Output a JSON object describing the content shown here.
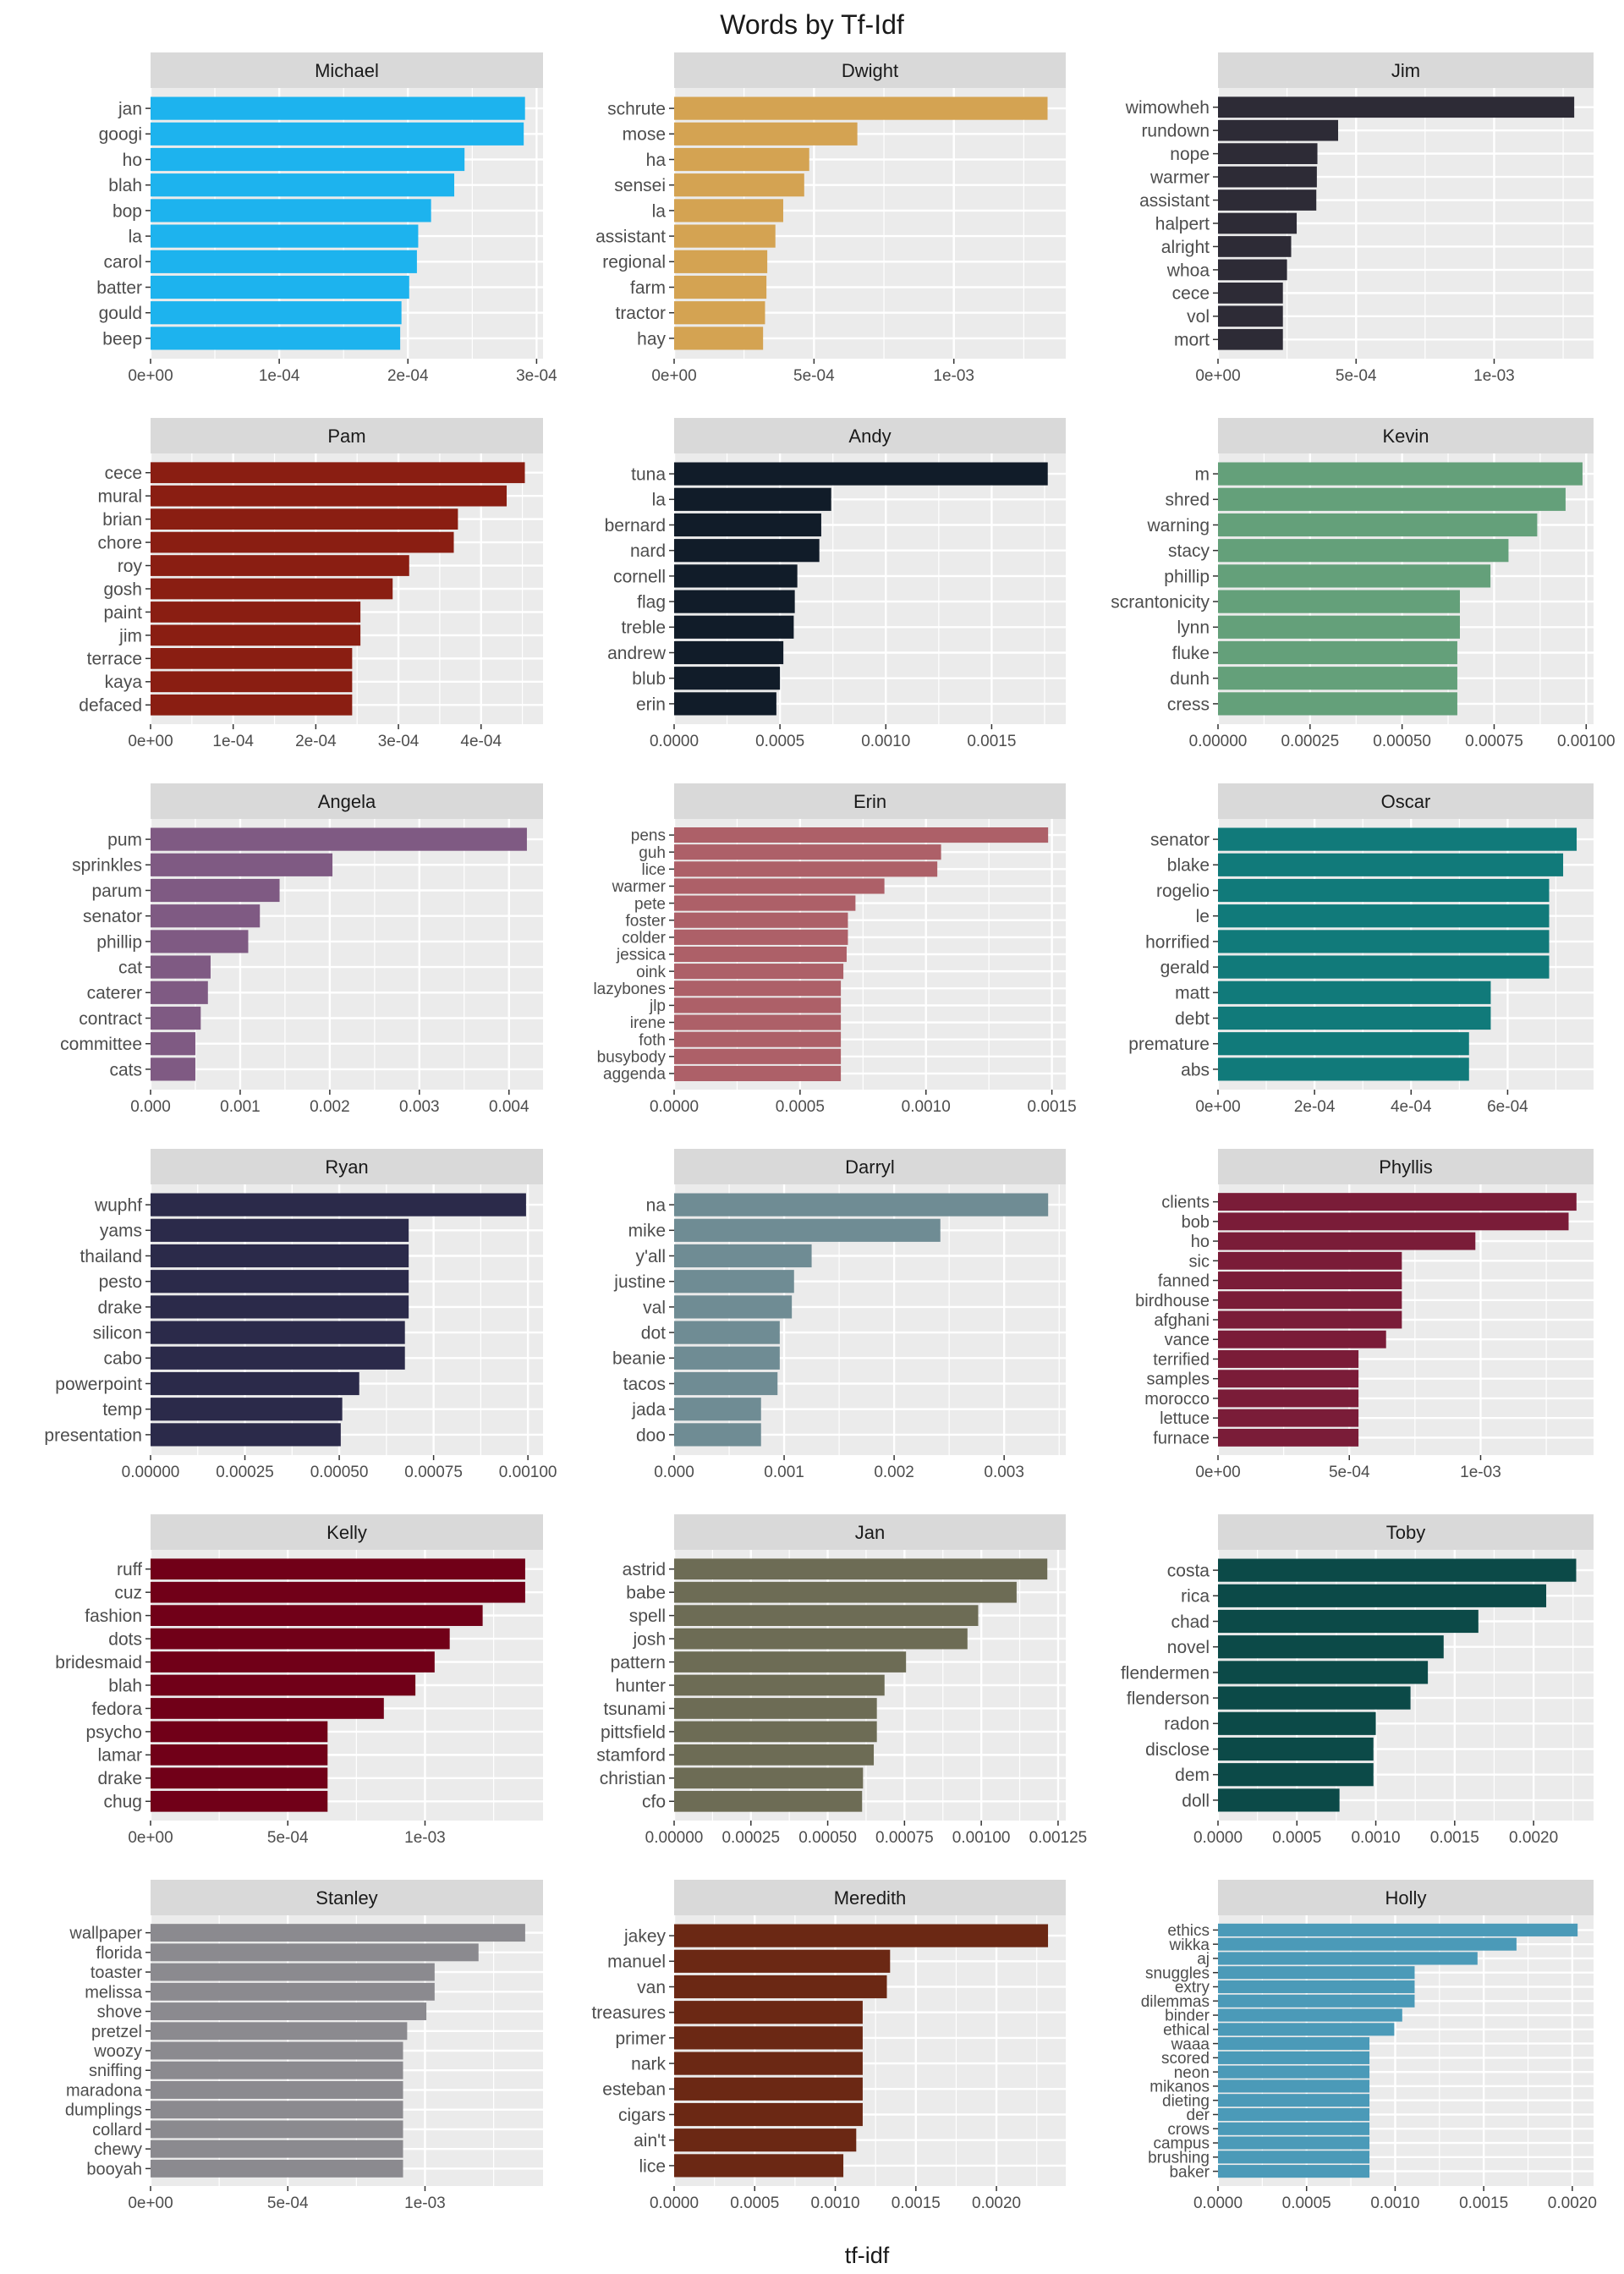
{
  "chart_data": {
    "type": "bar",
    "orientation": "horizontal",
    "title": "Words by Tf-Idf",
    "xlabel": "tf-idf",
    "ylabel": "",
    "grid": true,
    "facets": [
      {
        "name": "Michael",
        "color": "#1db3ee",
        "xlim": [
          0,
          0.000305
        ],
        "ticks": [
          {
            "v": 0,
            "l": "0e+00"
          },
          {
            "v": 0.0001,
            "l": "1e-04"
          },
          {
            "v": 0.0002,
            "l": "2e-04"
          },
          {
            "v": 0.0003,
            "l": "3e-04"
          }
        ],
        "categories": [
          "jan",
          "googi",
          "ho",
          "blah",
          "bop",
          "la",
          "carol",
          "batter",
          "gould",
          "beep"
        ],
        "values": [
          0.000291,
          0.00029,
          0.000244,
          0.000236,
          0.000218,
          0.000208,
          0.000207,
          0.000201,
          0.000195,
          0.000194
        ]
      },
      {
        "name": "Dwight",
        "color": "#d4a352",
        "xlim": [
          0,
          0.0014
        ],
        "ticks": [
          {
            "v": 0,
            "l": "0e+00"
          },
          {
            "v": 0.0005,
            "l": "5e-04"
          },
          {
            "v": 0.001,
            "l": "1e-03"
          }
        ],
        "categories": [
          "schrute",
          "mose",
          "ha",
          "sensei",
          "la",
          "assistant",
          "regional",
          "farm",
          "tractor",
          "hay"
        ],
        "values": [
          0.001335,
          0.000655,
          0.000483,
          0.000465,
          0.00039,
          0.000362,
          0.000333,
          0.00033,
          0.000325,
          0.000318
        ]
      },
      {
        "name": "Jim",
        "color": "#2d2b36",
        "xlim": [
          0,
          0.00136
        ],
        "ticks": [
          {
            "v": 0,
            "l": "0e+00"
          },
          {
            "v": 0.0005,
            "l": "5e-04"
          },
          {
            "v": 0.001,
            "l": "1e-03"
          }
        ],
        "categories": [
          "wimowheh",
          "rundown",
          "nope",
          "warmer",
          "assistant",
          "halpert",
          "alright",
          "whoa",
          "cece",
          "vol",
          "mort"
        ],
        "values": [
          0.00129,
          0.000435,
          0.00036,
          0.000358,
          0.000356,
          0.000285,
          0.000265,
          0.00025,
          0.000235,
          0.000235,
          0.000235
        ]
      },
      {
        "name": "Pam",
        "color": "#8a1e12",
        "xlim": [
          0,
          0.000475
        ],
        "ticks": [
          {
            "v": 0,
            "l": "0e+00"
          },
          {
            "v": 0.0001,
            "l": "1e-04"
          },
          {
            "v": 0.0002,
            "l": "2e-04"
          },
          {
            "v": 0.0003,
            "l": "3e-04"
          },
          {
            "v": 0.0004,
            "l": "4e-04"
          }
        ],
        "categories": [
          "cece",
          "mural",
          "brian",
          "chore",
          "roy",
          "gosh",
          "paint",
          "jim",
          "terrace",
          "kaya",
          "defaced"
        ],
        "values": [
          0.000453,
          0.000431,
          0.000372,
          0.000367,
          0.000313,
          0.000293,
          0.000254,
          0.000254,
          0.000244,
          0.000244,
          0.000244
        ]
      },
      {
        "name": "Andy",
        "color": "#111c29",
        "xlim": [
          0,
          0.00185
        ],
        "ticks": [
          {
            "v": 0,
            "l": "0.0000"
          },
          {
            "v": 0.0005,
            "l": "0.0005"
          },
          {
            "v": 0.001,
            "l": "0.0010"
          },
          {
            "v": 0.0015,
            "l": "0.0015"
          }
        ],
        "categories": [
          "tuna",
          "la",
          "bernard",
          "nard",
          "cornell",
          "flag",
          "treble",
          "andrew",
          "blub",
          "erin"
        ],
        "values": [
          0.001765,
          0.000742,
          0.000695,
          0.000686,
          0.000582,
          0.00057,
          0.000565,
          0.000516,
          0.0005,
          0.000483
        ]
      },
      {
        "name": "Kevin",
        "color": "#64a07a",
        "xlim": [
          0,
          0.00102
        ],
        "ticks": [
          {
            "v": 0,
            "l": "0.00000"
          },
          {
            "v": 0.00025,
            "l": "0.00025"
          },
          {
            "v": 0.0005,
            "l": "0.00050"
          },
          {
            "v": 0.00075,
            "l": "0.00075"
          },
          {
            "v": 0.001,
            "l": "0.00100"
          }
        ],
        "categories": [
          "m",
          "shred",
          "warning",
          "stacy",
          "phillip",
          "scrantonicity",
          "lynn",
          "fluke",
          "dunh",
          "cress"
        ],
        "values": [
          0.00099,
          0.000944,
          0.000867,
          0.000789,
          0.00074,
          0.000657,
          0.000657,
          0.00065,
          0.00065,
          0.00065
        ]
      },
      {
        "name": "Angela",
        "color": "#7f5a83",
        "xlim": [
          0,
          0.00438
        ],
        "ticks": [
          {
            "v": 0,
            "l": "0.000"
          },
          {
            "v": 0.001,
            "l": "0.001"
          },
          {
            "v": 0.002,
            "l": "0.002"
          },
          {
            "v": 0.003,
            "l": "0.003"
          },
          {
            "v": 0.004,
            "l": "0.004"
          }
        ],
        "categories": [
          "pum",
          "sprinkles",
          "parum",
          "senator",
          "phillip",
          "cat",
          "caterer",
          "contract",
          "committee",
          "cats"
        ],
        "values": [
          0.0042,
          0.00203,
          0.00144,
          0.00122,
          0.00109,
          0.00067,
          0.00064,
          0.00056,
          0.0005,
          0.0005
        ]
      },
      {
        "name": "Erin",
        "color": "#ad6068",
        "xlim": [
          0,
          0.001555
        ],
        "ticks": [
          {
            "v": 0,
            "l": "0.0000"
          },
          {
            "v": 0.0005,
            "l": "0.0005"
          },
          {
            "v": 0.001,
            "l": "0.0010"
          },
          {
            "v": 0.0015,
            "l": "0.0015"
          }
        ],
        "categories": [
          "pens",
          "guh",
          "lice",
          "warmer",
          "pete",
          "foster",
          "colder",
          "jessica",
          "oink",
          "lazybones",
          "jlp",
          "irene",
          "foth",
          "busybody",
          "aggenda"
        ],
        "values": [
          0.001485,
          0.00106,
          0.001045,
          0.000835,
          0.00072,
          0.00069,
          0.00069,
          0.000685,
          0.000672,
          0.000662,
          0.000662,
          0.000662,
          0.000662,
          0.000662,
          0.000662
        ]
      },
      {
        "name": "Oscar",
        "color": "#117a7a",
        "xlim": [
          0,
          0.000778
        ],
        "ticks": [
          {
            "v": 0,
            "l": "0e+00"
          },
          {
            "v": 0.0002,
            "l": "2e-04"
          },
          {
            "v": 0.0004,
            "l": "4e-04"
          },
          {
            "v": 0.0006,
            "l": "6e-04"
          }
        ],
        "categories": [
          "senator",
          "blake",
          "rogelio",
          "le",
          "horrified",
          "gerald",
          "matt",
          "debt",
          "premature",
          "abs"
        ],
        "values": [
          0.000743,
          0.000715,
          0.000686,
          0.000686,
          0.000686,
          0.000686,
          0.000565,
          0.000565,
          0.00052,
          0.00052
        ]
      },
      {
        "name": "Ryan",
        "color": "#2b2a4a",
        "xlim": [
          0,
          0.00104
        ],
        "ticks": [
          {
            "v": 0,
            "l": "0.00000"
          },
          {
            "v": 0.00025,
            "l": "0.00025"
          },
          {
            "v": 0.0005,
            "l": "0.00050"
          },
          {
            "v": 0.00075,
            "l": "0.00075"
          },
          {
            "v": 0.001,
            "l": "0.00100"
          }
        ],
        "categories": [
          "wuphf",
          "yams",
          "thailand",
          "pesto",
          "drake",
          "silicon",
          "cabo",
          "powerpoint",
          "temp",
          "presentation"
        ],
        "values": [
          0.000995,
          0.000684,
          0.000684,
          0.000684,
          0.000684,
          0.000674,
          0.000674,
          0.000553,
          0.000508,
          0.000504
        ]
      },
      {
        "name": "Darryl",
        "color": "#6f8c94",
        "xlim": [
          0,
          0.00356
        ],
        "ticks": [
          {
            "v": 0,
            "l": "0.000"
          },
          {
            "v": 0.001,
            "l": "0.001"
          },
          {
            "v": 0.002,
            "l": "0.002"
          },
          {
            "v": 0.003,
            "l": "0.003"
          }
        ],
        "categories": [
          "na",
          "mike",
          "y'all",
          "justine",
          "val",
          "dot",
          "beanie",
          "tacos",
          "jada",
          "doo"
        ],
        "values": [
          0.0034,
          0.00242,
          0.00125,
          0.00109,
          0.00107,
          0.00096,
          0.00096,
          0.00094,
          0.00079,
          0.00079
        ]
      },
      {
        "name": "Phyllis",
        "color": "#7a1c38",
        "xlim": [
          0,
          0.00143
        ],
        "ticks": [
          {
            "v": 0,
            "l": "0e+00"
          },
          {
            "v": 0.0005,
            "l": "5e-04"
          },
          {
            "v": 0.001,
            "l": "1e-03"
          }
        ],
        "categories": [
          "clients",
          "bob",
          "ho",
          "sic",
          "fanned",
          "birdhouse",
          "afghani",
          "vance",
          "terrified",
          "samples",
          "morocco",
          "lettuce",
          "furnace"
        ],
        "values": [
          0.001365,
          0.001335,
          0.00098,
          0.0007,
          0.0007,
          0.0007,
          0.0007,
          0.00064,
          0.000535,
          0.000535,
          0.000535,
          0.000535,
          0.000535
        ]
      },
      {
        "name": "Kelly",
        "color": "#710018",
        "xlim": [
          0,
          0.00143
        ],
        "ticks": [
          {
            "v": 0,
            "l": "0e+00"
          },
          {
            "v": 0.0005,
            "l": "5e-04"
          },
          {
            "v": 0.001,
            "l": "1e-03"
          }
        ],
        "categories": [
          "ruff",
          "cuz",
          "fashion",
          "dots",
          "bridesmaid",
          "blah",
          "fedora",
          "psycho",
          "lamar",
          "drake",
          "chug"
        ],
        "values": [
          0.001365,
          0.001365,
          0.00121,
          0.00109,
          0.001035,
          0.000965,
          0.00085,
          0.000645,
          0.000645,
          0.000645,
          0.000645
        ]
      },
      {
        "name": "Jan",
        "color": "#6d6c55",
        "xlim": [
          0,
          0.001275
        ],
        "ticks": [
          {
            "v": 0,
            "l": "0.00000"
          },
          {
            "v": 0.00025,
            "l": "0.00025"
          },
          {
            "v": 0.0005,
            "l": "0.00050"
          },
          {
            "v": 0.00075,
            "l": "0.00075"
          },
          {
            "v": 0.001,
            "l": "0.00100"
          },
          {
            "v": 0.00125,
            "l": "0.00125"
          }
        ],
        "categories": [
          "astrid",
          "babe",
          "spell",
          "josh",
          "pattern",
          "hunter",
          "tsunami",
          "pittsfield",
          "stamford",
          "christian",
          "cfo"
        ],
        "values": [
          0.001215,
          0.001115,
          0.00099,
          0.000955,
          0.000755,
          0.000685,
          0.00066,
          0.00066,
          0.00065,
          0.000615,
          0.000612
        ]
      },
      {
        "name": "Toby",
        "color": "#0c4a48",
        "xlim": [
          0,
          0.00238
        ],
        "ticks": [
          {
            "v": 0,
            "l": "0.0000"
          },
          {
            "v": 0.0005,
            "l": "0.0005"
          },
          {
            "v": 0.001,
            "l": "0.0010"
          },
          {
            "v": 0.0015,
            "l": "0.0015"
          },
          {
            "v": 0.002,
            "l": "0.0020"
          }
        ],
        "categories": [
          "costa",
          "rica",
          "chad",
          "novel",
          "flendermen",
          "flenderson",
          "radon",
          "disclose",
          "dem",
          "doll"
        ],
        "values": [
          0.00227,
          0.00208,
          0.00165,
          0.00143,
          0.00133,
          0.00122,
          0.001,
          0.000985,
          0.000985,
          0.00077
        ]
      },
      {
        "name": "Stanley",
        "color": "#8b8a8f",
        "xlim": [
          0,
          0.00143
        ],
        "ticks": [
          {
            "v": 0,
            "l": "0e+00"
          },
          {
            "v": 0.0005,
            "l": "5e-04"
          },
          {
            "v": 0.001,
            "l": "1e-03"
          }
        ],
        "categories": [
          "wallpaper",
          "florida",
          "toaster",
          "melissa",
          "shove",
          "pretzel",
          "woozy",
          "sniffing",
          "maradona",
          "dumplings",
          "collard",
          "chewy",
          "booyah"
        ],
        "values": [
          0.001365,
          0.001195,
          0.001035,
          0.001035,
          0.001005,
          0.000935,
          0.00092,
          0.00092,
          0.00092,
          0.00092,
          0.00092,
          0.00092,
          0.00092
        ]
      },
      {
        "name": "Meredith",
        "color": "#6b2814",
        "xlim": [
          0,
          0.00243
        ],
        "ticks": [
          {
            "v": 0,
            "l": "0.0000"
          },
          {
            "v": 0.0005,
            "l": "0.0005"
          },
          {
            "v": 0.001,
            "l": "0.0010"
          },
          {
            "v": 0.0015,
            "l": "0.0015"
          },
          {
            "v": 0.002,
            "l": "0.0020"
          }
        ],
        "categories": [
          "jakey",
          "manuel",
          "van",
          "treasures",
          "primer",
          "nark",
          "esteban",
          "cigars",
          "ain't",
          "lice"
        ],
        "values": [
          0.00232,
          0.00134,
          0.00132,
          0.00117,
          0.00117,
          0.00117,
          0.00117,
          0.00117,
          0.00113,
          0.00105
        ]
      },
      {
        "name": "Holly",
        "color": "#4b9ab8",
        "xlim": [
          0,
          0.00212
        ],
        "ticks": [
          {
            "v": 0,
            "l": "0.0000"
          },
          {
            "v": 0.0005,
            "l": "0.0005"
          },
          {
            "v": 0.001,
            "l": "0.0010"
          },
          {
            "v": 0.0015,
            "l": "0.0015"
          },
          {
            "v": 0.002,
            "l": "0.0020"
          }
        ],
        "categories": [
          "ethics",
          "wikka",
          "aj",
          "snuggles",
          "extry",
          "dilemmas",
          "binder",
          "ethical",
          "waaa",
          "scored",
          "neon",
          "mikanos",
          "dieting",
          "der",
          "crows",
          "campus",
          "brushing",
          "baker"
        ],
        "values": [
          0.00203,
          0.001685,
          0.001465,
          0.00111,
          0.00111,
          0.00111,
          0.00104,
          0.000995,
          0.000855,
          0.000855,
          0.000855,
          0.000855,
          0.000855,
          0.000855,
          0.000855,
          0.000855,
          0.000855,
          0.000855
        ]
      }
    ]
  }
}
